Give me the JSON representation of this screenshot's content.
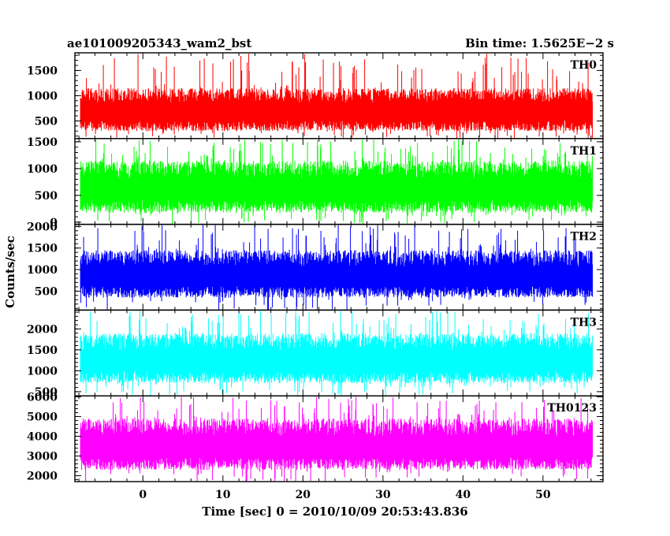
{
  "chart_data": {
    "type": "line",
    "title_left": "ae101009205343_wam2_bst",
    "title_right": "Bin time: 1.5625E−2 s",
    "xlabel": "Time [sec] 0 = 2010/10/09 20:53:43.836",
    "ylabel": "Counts/sec",
    "xlim": [
      -8.5,
      57.5
    ],
    "x_ticks": [
      0,
      10,
      20,
      30,
      40,
      50
    ],
    "x_tick_labels": [
      "0",
      "10",
      "20",
      "30",
      "40",
      "50"
    ],
    "data_x_range": [
      -7.8,
      56.2
    ],
    "panels": [
      {
        "name": "TH0",
        "color": "#ff0000",
        "ylim": [
          150,
          1850
        ],
        "y_ticks": [
          500,
          1000,
          1500
        ],
        "y_tick_labels": [
          "500",
          "1000",
          "1500"
        ],
        "typical_low": 300,
        "typical_high": 1150,
        "spike_max": 1850
      },
      {
        "name": "TH1",
        "color": "#00ff00",
        "ylim": [
          -40,
          1560
        ],
        "y_ticks": [
          0,
          500,
          1000,
          1500
        ],
        "y_tick_labels": [
          "0",
          "500",
          "1000",
          "1500"
        ],
        "typical_low": 180,
        "typical_high": 1150,
        "spike_max": 1550
      },
      {
        "name": "TH2",
        "color": "#0000ff",
        "ylim": [
          60,
          2050
        ],
        "y_ticks": [
          500,
          1000,
          1500,
          2000
        ],
        "y_tick_labels": [
          "500",
          "1000",
          "1500",
          "2000"
        ],
        "typical_low": 350,
        "typical_high": 1450,
        "spike_max": 2050
      },
      {
        "name": "TH3",
        "color": "#00ffff",
        "ylim": [
          400,
          2450
        ],
        "y_ticks": [
          500,
          1000,
          1500,
          2000
        ],
        "y_tick_labels": [
          "500",
          "1000",
          "1500",
          "2000"
        ],
        "typical_low": 700,
        "typical_high": 1900,
        "spike_max": 2450
      },
      {
        "name": "TH0123",
        "color": "#ff00ff",
        "ylim": [
          1700,
          6050
        ],
        "y_ticks": [
          2000,
          3000,
          4000,
          5000,
          6000
        ],
        "y_tick_labels": [
          "2000",
          "3000",
          "4000",
          "5000",
          "6000"
        ],
        "typical_low": 2300,
        "typical_high": 4900,
        "spike_max": 6000
      }
    ]
  }
}
